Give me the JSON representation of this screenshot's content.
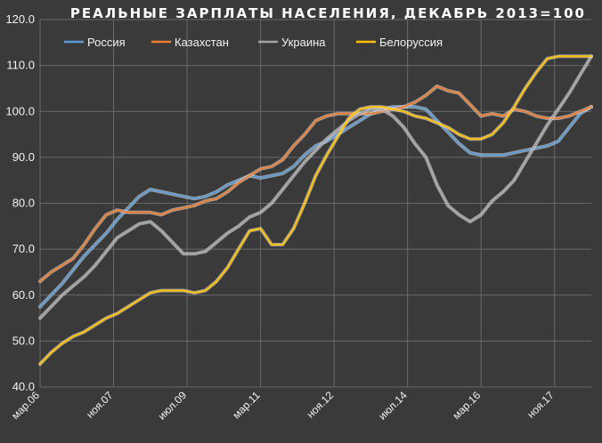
{
  "chart_data": {
    "type": "line",
    "title": "РЕАЛЬНЫЕ ЗАРПЛАТЫ НАСЕЛЕНИЯ, ДЕКАБРЬ 2013=100",
    "xlabel": "",
    "ylabel": "",
    "ylim": [
      40,
      120
    ],
    "y_ticks": [
      "40.0",
      "50.0",
      "60.0",
      "70.0",
      "80.0",
      "90.0",
      "100.0",
      "110.0",
      "120.0"
    ],
    "x_tick_labels": [
      "мар.06",
      "ноя.07",
      "июл.09",
      "мар.11",
      "ноя.12",
      "июл.14",
      "мар.16",
      "ноя.17"
    ],
    "x_range": [
      "2006-03",
      "2018-06"
    ],
    "grid": true,
    "legend_position": "top-left",
    "series": [
      {
        "name": "Россия",
        "color": "#5b9bd5",
        "points": [
          [
            "2006-03",
            57.5
          ],
          [
            "2006-06",
            60.0
          ],
          [
            "2006-09",
            62.5
          ],
          [
            "2006-12",
            65.5
          ],
          [
            "2007-03",
            68.5
          ],
          [
            "2007-06",
            71.0
          ],
          [
            "2007-09",
            73.5
          ],
          [
            "2007-12",
            76.5
          ],
          [
            "2008-03",
            79.0
          ],
          [
            "2008-06",
            81.5
          ],
          [
            "2008-09",
            83.0
          ],
          [
            "2008-12",
            82.5
          ],
          [
            "2009-03",
            82.0
          ],
          [
            "2009-06",
            81.5
          ],
          [
            "2009-09",
            81.0
          ],
          [
            "2009-12",
            81.5
          ],
          [
            "2010-03",
            82.5
          ],
          [
            "2010-06",
            84.0
          ],
          [
            "2010-09",
            85.0
          ],
          [
            "2010-12",
            86.0
          ],
          [
            "2011-03",
            85.5
          ],
          [
            "2011-06",
            86.0
          ],
          [
            "2011-09",
            86.5
          ],
          [
            "2011-12",
            88.0
          ],
          [
            "2012-03",
            90.5
          ],
          [
            "2012-06",
            92.5
          ],
          [
            "2012-09",
            93.5
          ],
          [
            "2012-12",
            95.0
          ],
          [
            "2013-03",
            96.5
          ],
          [
            "2013-06",
            98.0
          ],
          [
            "2013-09",
            99.5
          ],
          [
            "2013-12",
            100.5
          ],
          [
            "2014-03",
            101.0
          ],
          [
            "2014-06",
            101.0
          ],
          [
            "2014-09",
            101.0
          ],
          [
            "2014-12",
            100.5
          ],
          [
            "2015-03",
            98.0
          ],
          [
            "2015-06",
            95.5
          ],
          [
            "2015-09",
            93.0
          ],
          [
            "2015-12",
            91.0
          ],
          [
            "2016-03",
            90.5
          ],
          [
            "2016-06",
            90.5
          ],
          [
            "2016-09",
            90.5
          ],
          [
            "2016-12",
            91.0
          ],
          [
            "2017-03",
            91.5
          ],
          [
            "2017-06",
            92.0
          ],
          [
            "2017-09",
            92.5
          ],
          [
            "2017-12",
            93.5
          ],
          [
            "2018-03",
            96.5
          ],
          [
            "2018-06",
            99.5
          ],
          [
            "2018-09",
            101.0
          ]
        ]
      },
      {
        "name": "Казахстан",
        "color": "#ed7d31",
        "points": [
          [
            "2006-03",
            63.0
          ],
          [
            "2006-06",
            65.0
          ],
          [
            "2006-09",
            66.5
          ],
          [
            "2006-12",
            68.0
          ],
          [
            "2007-03",
            71.0
          ],
          [
            "2007-06",
            74.5
          ],
          [
            "2007-09",
            77.5
          ],
          [
            "2007-12",
            78.5
          ],
          [
            "2008-03",
            78.0
          ],
          [
            "2008-06",
            78.0
          ],
          [
            "2008-09",
            78.0
          ],
          [
            "2008-12",
            77.5
          ],
          [
            "2009-03",
            78.5
          ],
          [
            "2009-06",
            79.0
          ],
          [
            "2009-09",
            79.5
          ],
          [
            "2009-12",
            80.5
          ],
          [
            "2010-03",
            81.0
          ],
          [
            "2010-06",
            82.5
          ],
          [
            "2010-09",
            84.5
          ],
          [
            "2010-12",
            86.0
          ],
          [
            "2011-03",
            87.5
          ],
          [
            "2011-06",
            88.0
          ],
          [
            "2011-09",
            89.5
          ],
          [
            "2011-12",
            92.5
          ],
          [
            "2012-03",
            95.0
          ],
          [
            "2012-06",
            98.0
          ],
          [
            "2012-09",
            99.0
          ],
          [
            "2012-12",
            99.5
          ],
          [
            "2013-03",
            99.5
          ],
          [
            "2013-06",
            99.5
          ],
          [
            "2013-09",
            99.5
          ],
          [
            "2013-12",
            100.0
          ],
          [
            "2014-03",
            100.5
          ],
          [
            "2014-06",
            101.0
          ],
          [
            "2014-09",
            102.0
          ],
          [
            "2014-12",
            103.5
          ],
          [
            "2015-03",
            105.5
          ],
          [
            "2015-06",
            104.5
          ],
          [
            "2015-09",
            104.0
          ],
          [
            "2015-12",
            101.5
          ],
          [
            "2016-03",
            99.0
          ],
          [
            "2016-06",
            99.5
          ],
          [
            "2016-09",
            99.0
          ],
          [
            "2016-12",
            100.5
          ],
          [
            "2017-03",
            100.0
          ],
          [
            "2017-06",
            99.0
          ],
          [
            "2017-09",
            98.5
          ],
          [
            "2017-12",
            98.5
          ],
          [
            "2018-03",
            99.0
          ],
          [
            "2018-06",
            100.0
          ],
          [
            "2018-09",
            101.0
          ]
        ]
      },
      {
        "name": "Украина",
        "color": "#a5a5a5",
        "points": [
          [
            "2006-03",
            55.0
          ],
          [
            "2006-06",
            57.5
          ],
          [
            "2006-09",
            60.0
          ],
          [
            "2006-12",
            62.0
          ],
          [
            "2007-03",
            64.0
          ],
          [
            "2007-06",
            66.5
          ],
          [
            "2007-09",
            69.5
          ],
          [
            "2007-12",
            72.5
          ],
          [
            "2008-03",
            74.0
          ],
          [
            "2008-06",
            75.5
          ],
          [
            "2008-09",
            76.0
          ],
          [
            "2008-12",
            74.0
          ],
          [
            "2009-03",
            71.5
          ],
          [
            "2009-06",
            69.0
          ],
          [
            "2009-09",
            69.0
          ],
          [
            "2009-12",
            69.5
          ],
          [
            "2010-03",
            71.5
          ],
          [
            "2010-06",
            73.5
          ],
          [
            "2010-09",
            75.0
          ],
          [
            "2010-12",
            77.0
          ],
          [
            "2011-03",
            78.0
          ],
          [
            "2011-06",
            80.0
          ],
          [
            "2011-09",
            83.0
          ],
          [
            "2011-12",
            86.0
          ],
          [
            "2012-03",
            89.0
          ],
          [
            "2012-06",
            91.5
          ],
          [
            "2012-09",
            94.0
          ],
          [
            "2012-12",
            96.0
          ],
          [
            "2013-03",
            98.0
          ],
          [
            "2013-06",
            99.5
          ],
          [
            "2013-09",
            100.5
          ],
          [
            "2013-12",
            100.5
          ],
          [
            "2014-03",
            99.0
          ],
          [
            "2014-06",
            96.5
          ],
          [
            "2014-09",
            93.0
          ],
          [
            "2014-12",
            90.0
          ],
          [
            "2015-03",
            84.0
          ],
          [
            "2015-06",
            79.5
          ],
          [
            "2015-09",
            77.5
          ],
          [
            "2015-12",
            76.0
          ],
          [
            "2016-03",
            77.5
          ],
          [
            "2016-06",
            80.5
          ],
          [
            "2016-09",
            82.5
          ],
          [
            "2016-12",
            85.0
          ],
          [
            "2017-03",
            89.0
          ],
          [
            "2017-06",
            93.0
          ],
          [
            "2017-09",
            97.0
          ],
          [
            "2017-12",
            100.5
          ],
          [
            "2018-03",
            104.0
          ],
          [
            "2018-06",
            108.0
          ],
          [
            "2018-09",
            112.0
          ]
        ]
      },
      {
        "name": "Белоруссия",
        "color": "#ffc000",
        "points": [
          [
            "2006-03",
            45.0
          ],
          [
            "2006-06",
            47.5
          ],
          [
            "2006-09",
            49.5
          ],
          [
            "2006-12",
            51.0
          ],
          [
            "2007-03",
            52.0
          ],
          [
            "2007-06",
            53.5
          ],
          [
            "2007-09",
            55.0
          ],
          [
            "2007-12",
            56.0
          ],
          [
            "2008-03",
            57.5
          ],
          [
            "2008-06",
            59.0
          ],
          [
            "2008-09",
            60.5
          ],
          [
            "2008-12",
            61.0
          ],
          [
            "2009-03",
            61.0
          ],
          [
            "2009-06",
            61.0
          ],
          [
            "2009-09",
            60.5
          ],
          [
            "2009-12",
            61.0
          ],
          [
            "2010-03",
            63.0
          ],
          [
            "2010-06",
            66.0
          ],
          [
            "2010-09",
            70.0
          ],
          [
            "2010-12",
            74.0
          ],
          [
            "2011-03",
            74.5
          ],
          [
            "2011-06",
            71.0
          ],
          [
            "2011-09",
            71.0
          ],
          [
            "2011-12",
            74.5
          ],
          [
            "2012-03",
            80.0
          ],
          [
            "2012-06",
            86.0
          ],
          [
            "2012-09",
            90.5
          ],
          [
            "2012-12",
            94.5
          ],
          [
            "2013-03",
            98.5
          ],
          [
            "2013-06",
            100.5
          ],
          [
            "2013-09",
            101.0
          ],
          [
            "2013-12",
            101.0
          ],
          [
            "2014-03",
            100.5
          ],
          [
            "2014-06",
            100.0
          ],
          [
            "2014-09",
            99.0
          ],
          [
            "2014-12",
            98.5
          ],
          [
            "2015-03",
            97.5
          ],
          [
            "2015-06",
            96.5
          ],
          [
            "2015-09",
            95.0
          ],
          [
            "2015-12",
            94.0
          ],
          [
            "2016-03",
            94.0
          ],
          [
            "2016-06",
            95.0
          ],
          [
            "2016-09",
            97.5
          ],
          [
            "2016-12",
            101.0
          ],
          [
            "2017-03",
            105.0
          ],
          [
            "2017-06",
            108.5
          ],
          [
            "2017-09",
            111.5
          ],
          [
            "2017-12",
            112.0
          ],
          [
            "2018-03",
            112.0
          ],
          [
            "2018-06",
            112.0
          ],
          [
            "2018-09",
            112.0
          ]
        ]
      }
    ]
  }
}
